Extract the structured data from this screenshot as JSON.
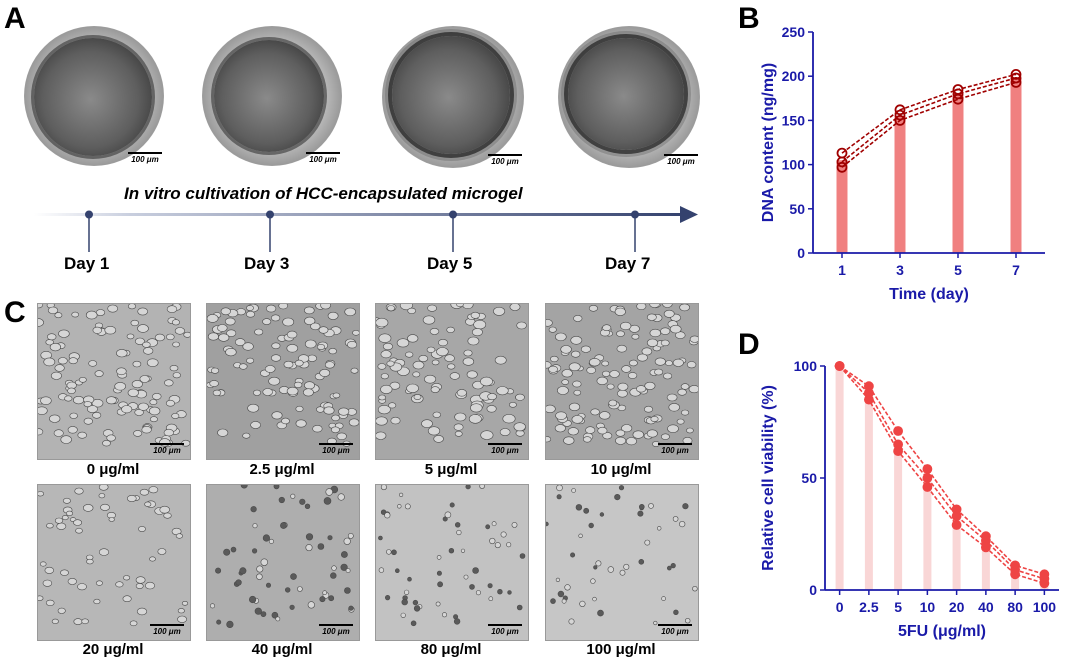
{
  "panels": {
    "a": "A",
    "b": "B",
    "c": "C",
    "d": "D"
  },
  "panel_a": {
    "timeline_title": "In vitro cultivation of HCC-encapsulated microgel",
    "days": [
      "Day 1",
      "Day 3",
      "Day 5",
      "Day 7"
    ],
    "scale_bar": "100 μm"
  },
  "panel_c": {
    "scale_bar": "100 μm",
    "concentrations": [
      "0 μg/ml",
      "2.5 μg/ml",
      "5 μg/ml",
      "10 μg/ml",
      "20 μg/ml",
      "40 μg/ml",
      "80 μg/ml",
      "100 μg/ml"
    ]
  },
  "colors": {
    "axis": "#1a1aa8",
    "bar_b": "#f08080",
    "line_b": "#a00000",
    "bar_d": "#f9d6d6",
    "line_d": "#ee4444",
    "timeline": "#3a4a7a"
  },
  "chart_data": [
    {
      "id": "B",
      "type": "bar",
      "xlabel": "Time (day)",
      "ylabel": "DNA content (ng/mg)",
      "categories": [
        "1",
        "3",
        "5",
        "7"
      ],
      "ylim": [
        0,
        250
      ],
      "yticks": [
        0,
        50,
        100,
        150,
        200,
        250
      ],
      "values": [
        105,
        155,
        180,
        198
      ],
      "replicates": [
        {
          "values": [
            113,
            162,
            185,
            202
          ]
        },
        {
          "values": [
            103,
            156,
            180,
            198
          ]
        },
        {
          "values": [
            97,
            150,
            174,
            193
          ]
        }
      ]
    },
    {
      "id": "D",
      "type": "bar",
      "xlabel": "5FU (μg/ml)",
      "ylabel": "Relative cell viability (%)",
      "categories": [
        "0",
        "2.5",
        "5",
        "10",
        "20",
        "40",
        "80",
        "100"
      ],
      "ylim": [
        0,
        100
      ],
      "yticks": [
        0,
        50,
        100
      ],
      "values": [
        100,
        88,
        66,
        50,
        33,
        22,
        9,
        5
      ],
      "replicates": [
        {
          "values": [
            100,
            91,
            71,
            54,
            36,
            24,
            11,
            7
          ]
        },
        {
          "values": [
            100,
            88,
            65,
            50,
            33,
            22,
            9,
            5
          ]
        },
        {
          "values": [
            100,
            85,
            62,
            46,
            29,
            19,
            7,
            3
          ]
        }
      ]
    }
  ]
}
